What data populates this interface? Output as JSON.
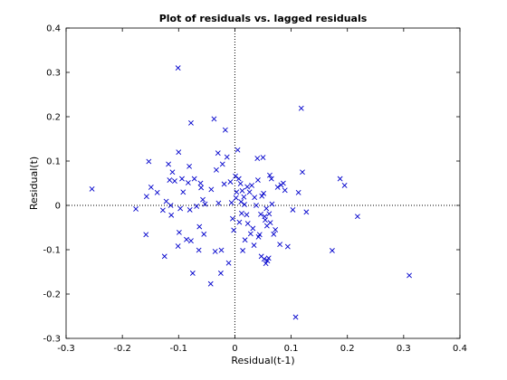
{
  "chart_data": {
    "type": "scatter",
    "title": "Plot of residuals vs. lagged residuals",
    "xlabel": "Residual(t-1)",
    "ylabel": "Residual(t)",
    "xlim": [
      -0.3,
      0.4
    ],
    "ylim": [
      -0.3,
      0.4
    ],
    "xticks": [
      -0.3,
      -0.2,
      -0.1,
      0,
      0.1,
      0.2,
      0.3,
      0.4
    ],
    "yticks": [
      -0.3,
      -0.2,
      -0.1,
      0,
      0.1,
      0.2,
      0.3,
      0.4
    ],
    "xtick_labels": [
      "-0.3",
      "-0.2",
      "-0.1",
      "0",
      "0.1",
      "0.2",
      "0.3",
      "0.4"
    ],
    "ytick_labels": [
      "-0.3",
      "-0.2",
      "-0.1",
      "0",
      "0.1",
      "0.2",
      "0.3",
      "0.4"
    ],
    "grid": false,
    "reference_lines": "dotted lines at x = 0 and y = 0",
    "marker": "x",
    "marker_color": "#0000cc",
    "axis_color": "#000000",
    "x": [
      -0.254,
      -0.176,
      -0.158,
      -0.157,
      -0.153,
      -0.149,
      -0.138,
      -0.128,
      -0.125,
      -0.122,
      -0.118,
      -0.116,
      -0.114,
      -0.113,
      -0.111,
      -0.107,
      -0.101,
      -0.101,
      -0.1,
      -0.099,
      -0.097,
      -0.094,
      -0.092,
      -0.086,
      -0.083,
      -0.081,
      -0.08,
      -0.078,
      -0.078,
      -0.075,
      -0.072,
      -0.068,
      -0.064,
      -0.063,
      -0.061,
      -0.06,
      -0.057,
      -0.055,
      -0.053,
      -0.043,
      -0.042,
      -0.037,
      -0.035,
      -0.033,
      -0.03,
      -0.029,
      -0.025,
      -0.024,
      -0.022,
      -0.019,
      -0.017,
      -0.014,
      -0.011,
      -0.008,
      -0.006,
      -0.004,
      -0.002,
      0.001,
      0.002,
      0.003,
      0.005,
      0.007,
      0.008,
      0.01,
      0.011,
      0.012,
      0.013,
      0.014,
      0.016,
      0.017,
      0.018,
      0.021,
      0.022,
      0.023,
      0.026,
      0.028,
      0.03,
      0.032,
      0.034,
      0.035,
      0.038,
      0.04,
      0.041,
      0.042,
      0.044,
      0.046,
      0.047,
      0.048,
      0.05,
      0.051,
      0.052,
      0.053,
      0.054,
      0.055,
      0.056,
      0.057,
      0.058,
      0.06,
      0.061,
      0.062,
      0.063,
      0.065,
      0.066,
      0.069,
      0.072,
      0.076,
      0.08,
      0.082,
      0.086,
      0.089,
      0.094,
      0.103,
      0.108,
      0.113,
      0.118,
      0.12,
      0.127,
      0.173,
      0.187,
      0.195,
      0.218,
      0.31
    ],
    "y": [
      0.037,
      -0.008,
      -0.066,
      0.02,
      0.099,
      0.041,
      0.029,
      -0.011,
      -0.115,
      0.009,
      0.093,
      0.057,
      0.0,
      -0.022,
      0.075,
      0.055,
      0.31,
      -0.092,
      0.12,
      -0.061,
      -0.007,
      0.06,
      0.03,
      -0.077,
      0.051,
      0.088,
      -0.01,
      0.186,
      -0.08,
      -0.153,
      0.06,
      -0.002,
      -0.101,
      -0.048,
      0.05,
      0.04,
      0.013,
      -0.065,
      0.003,
      -0.177,
      0.036,
      0.195,
      -0.104,
      0.08,
      0.118,
      0.005,
      -0.153,
      -0.101,
      0.093,
      0.048,
      0.17,
      0.109,
      -0.13,
      0.053,
      0.006,
      -0.03,
      -0.056,
      0.066,
      0.017,
      0.03,
      0.125,
      0.06,
      -0.038,
      0.049,
      0.008,
      -0.018,
      0.033,
      -0.102,
      0.019,
      0.002,
      -0.078,
      -0.021,
      0.042,
      -0.041,
      0.03,
      -0.064,
      0.045,
      -0.052,
      -0.09,
      0.018,
      0.0,
      0.106,
      0.057,
      -0.071,
      -0.066,
      -0.02,
      -0.115,
      0.021,
      0.108,
      0.027,
      -0.121,
      -0.025,
      -0.033,
      -0.131,
      -0.007,
      -0.046,
      -0.125,
      -0.119,
      -0.019,
      0.068,
      -0.039,
      0.06,
      0.003,
      -0.065,
      -0.055,
      0.041,
      -0.088,
      0.046,
      0.05,
      0.034,
      -0.093,
      -0.01,
      -0.252,
      0.029,
      0.219,
      0.075,
      -0.015,
      -0.102,
      0.06,
      0.045,
      -0.025,
      -0.158
    ]
  }
}
